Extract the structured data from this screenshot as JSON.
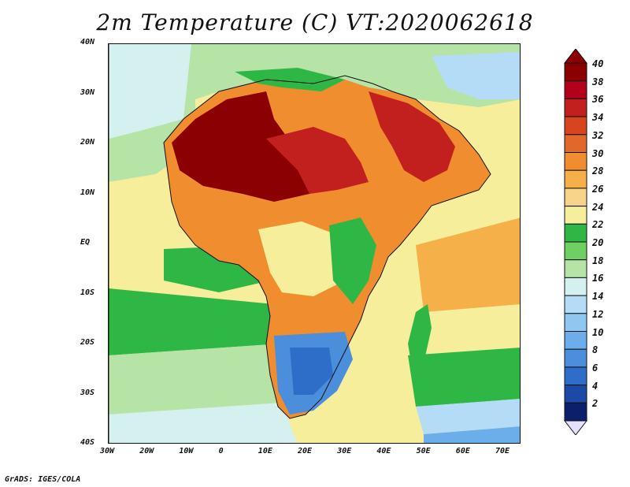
{
  "title": "2m Temperature (C) VT:2020062618",
  "credit": "GrADS: IGES/COLA",
  "axes": {
    "y_ticks": [
      "40N",
      "30N",
      "20N",
      "10N",
      "EQ",
      "10S",
      "20S",
      "30S",
      "40S"
    ],
    "x_ticks": [
      "30W",
      "20W",
      "10W",
      "0",
      "10E",
      "20E",
      "30E",
      "40E",
      "50E",
      "60E",
      "70E"
    ]
  },
  "legend": {
    "labels": [
      "40",
      "38",
      "36",
      "34",
      "32",
      "30",
      "28",
      "26",
      "24",
      "22",
      "20",
      "18",
      "16",
      "14",
      "12",
      "10",
      "8",
      "6",
      "4",
      "2"
    ],
    "colors": [
      "#8b0000",
      "#b3001b",
      "#c21f1f",
      "#d6451f",
      "#e2672a",
      "#f08d2f",
      "#f5b04a",
      "#f8d48b",
      "#f6ee9a",
      "#2fb745",
      "#6fcf62",
      "#b6e3a6",
      "#d4f0ef",
      "#b4dcf6",
      "#8ec8f2",
      "#6baee9",
      "#4b8fdc",
      "#2f6ec8",
      "#1a4aa6",
      "#0b1f6b"
    ]
  }
}
